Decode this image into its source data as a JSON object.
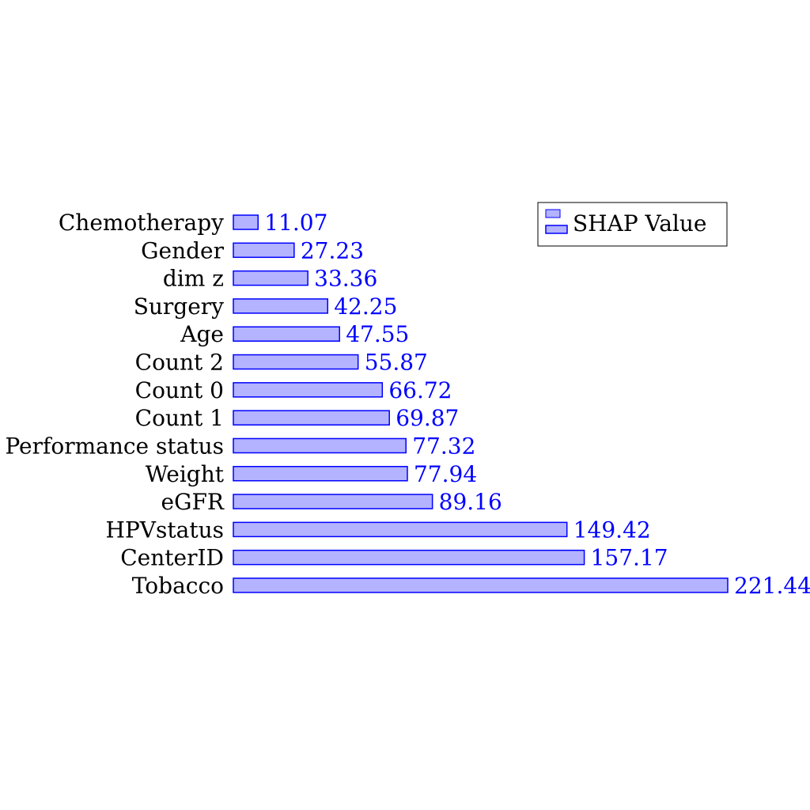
{
  "chart_data": {
    "type": "bar",
    "orientation": "horizontal",
    "categories": [
      "Chemotherapy",
      "Gender",
      "dim z",
      "Surgery",
      "Age",
      "Count 2",
      "Count 0",
      "Count 1",
      "Performance status",
      "Weight",
      "eGFR",
      "HPVstatus",
      "CenterID",
      "Tobacco"
    ],
    "series": [
      {
        "name": "SHAP Value",
        "values": [
          11.07,
          27.23,
          33.36,
          42.25,
          47.55,
          55.87,
          66.72,
          69.87,
          77.32,
          77.94,
          89.16,
          149.42,
          157.17,
          221.44
        ],
        "labels": [
          "11.07",
          "27.23",
          "33.36",
          "42.25",
          "47.55",
          "55.87",
          "66.72",
          "69.87",
          "77.32",
          "77.94",
          "89.16",
          "149.42",
          "157.17",
          "221.44"
        ]
      }
    ],
    "xlim": [
      0,
      221.44
    ],
    "grid": false,
    "legend_position": "top-right",
    "title": "",
    "xlabel": "",
    "ylabel": "",
    "colors": {
      "bar_fill": "#b3b3ff",
      "bar_stroke": "#0000ff",
      "value_text": "#0000ff"
    }
  }
}
